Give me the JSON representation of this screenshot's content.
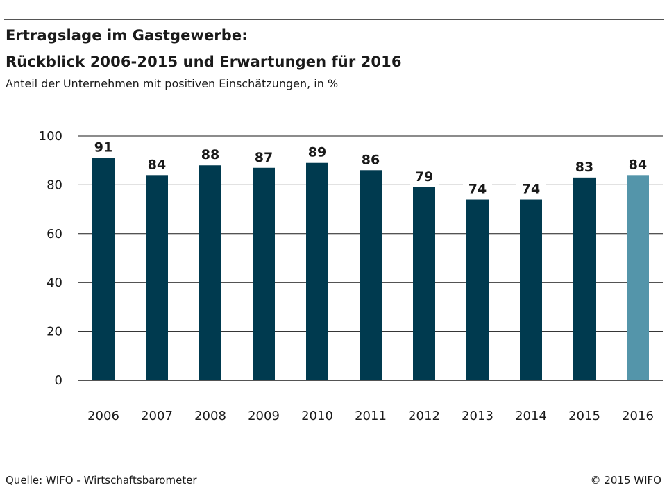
{
  "header": {
    "title_line1": "Ertragslage im Gastgewerbe:",
    "title_line2": "Rückblick 2006-2015 und Erwartungen für 2016",
    "subtitle": "Anteil der Unternehmen mit positiven Einschätzungen, in %"
  },
  "footer": {
    "source": "Quelle: WIFO - Wirtschaftsbarometer",
    "copyright": "© 2015 WIFO"
  },
  "colors": {
    "bar": "#003a4f",
    "bar_highlight": "#5495aa",
    "grid": "#1a1a1a"
  },
  "chart_data": {
    "type": "bar",
    "title": "Ertragslage im Gastgewerbe: Rückblick 2006-2015 und Erwartungen für 2016",
    "subtitle": "Anteil der Unternehmen mit positiven Einschätzungen, in %",
    "categories": [
      "2006",
      "2007",
      "2008",
      "2009",
      "2010",
      "2011",
      "2012",
      "2013",
      "2014",
      "2015",
      "2016"
    ],
    "values": [
      91,
      84,
      88,
      87,
      89,
      86,
      79,
      74,
      74,
      83,
      84
    ],
    "highlight_categories": [
      "2016"
    ],
    "ylim": [
      0,
      100
    ],
    "yticks": [
      0,
      20,
      40,
      60,
      80,
      100
    ],
    "grid": true,
    "legend": "none"
  }
}
